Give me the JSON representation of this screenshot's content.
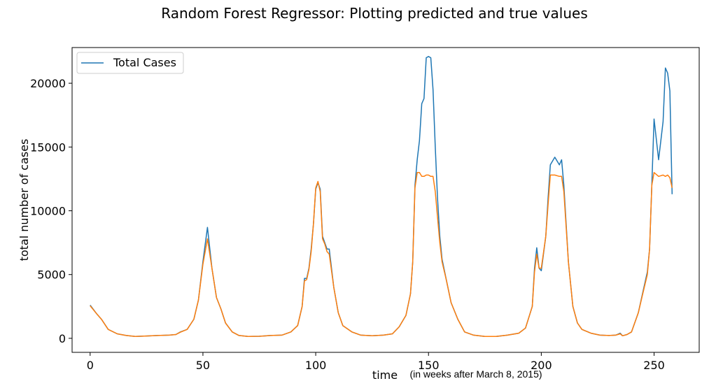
{
  "chart_data": {
    "type": "line",
    "title": "Random Forest Regressor: Plotting predicted and true values",
    "xlabel": "time",
    "xlabel_note": "(in weeks after March 8, 2015)",
    "ylabel": "total number of cases",
    "xlim": [
      -8,
      270
    ],
    "ylim": [
      -1100,
      22800
    ],
    "x_ticks": [
      0,
      50,
      100,
      150,
      200,
      250
    ],
    "y_ticks": [
      0,
      5000,
      10000,
      15000,
      20000
    ],
    "legend": {
      "position": "top-left",
      "entries": [
        "Total Cases"
      ]
    },
    "grid": false,
    "series": [
      {
        "name": "Total Cases",
        "color": "#1f77b4",
        "points": [
          [
            0,
            2600
          ],
          [
            3,
            1900
          ],
          [
            5,
            1500
          ],
          [
            8,
            700
          ],
          [
            12,
            350
          ],
          [
            16,
            220
          ],
          [
            20,
            150
          ],
          [
            25,
            180
          ],
          [
            30,
            220
          ],
          [
            35,
            250
          ],
          [
            38,
            300
          ],
          [
            40,
            500
          ],
          [
            43,
            700
          ],
          [
            46,
            1500
          ],
          [
            48,
            3000
          ],
          [
            50,
            6000
          ],
          [
            52,
            8700
          ],
          [
            54,
            5500
          ],
          [
            56,
            3200
          ],
          [
            58,
            2300
          ],
          [
            60,
            1200
          ],
          [
            63,
            500
          ],
          [
            66,
            220
          ],
          [
            70,
            150
          ],
          [
            75,
            160
          ],
          [
            80,
            220
          ],
          [
            85,
            250
          ],
          [
            89,
            500
          ],
          [
            92,
            1000
          ],
          [
            94,
            2500
          ],
          [
            95,
            4700
          ],
          [
            96,
            4700
          ],
          [
            97,
            5500
          ],
          [
            98,
            7000
          ],
          [
            99,
            9000
          ],
          [
            100,
            11700
          ],
          [
            101,
            12200
          ],
          [
            102,
            11700
          ],
          [
            103,
            8000
          ],
          [
            104,
            7500
          ],
          [
            105,
            7000
          ],
          [
            106,
            7000
          ],
          [
            108,
            4000
          ],
          [
            110,
            2000
          ],
          [
            112,
            1000
          ],
          [
            116,
            500
          ],
          [
            120,
            250
          ],
          [
            125,
            200
          ],
          [
            130,
            250
          ],
          [
            134,
            350
          ],
          [
            137,
            900
          ],
          [
            140,
            1800
          ],
          [
            142,
            3500
          ],
          [
            143,
            6000
          ],
          [
            144,
            12000
          ],
          [
            145,
            14000
          ],
          [
            146,
            15500
          ],
          [
            147,
            18400
          ],
          [
            148,
            18800
          ],
          [
            149,
            22000
          ],
          [
            150,
            22100
          ],
          [
            151,
            22000
          ],
          [
            152,
            19500
          ],
          [
            153,
            15000
          ],
          [
            154,
            11000
          ],
          [
            155,
            8000
          ],
          [
            156,
            6200
          ],
          [
            158,
            4500
          ],
          [
            160,
            2800
          ],
          [
            163,
            1500
          ],
          [
            166,
            500
          ],
          [
            170,
            250
          ],
          [
            175,
            150
          ],
          [
            180,
            150
          ],
          [
            185,
            250
          ],
          [
            190,
            400
          ],
          [
            193,
            800
          ],
          [
            196,
            2500
          ],
          [
            197,
            5500
          ],
          [
            198,
            7100
          ],
          [
            199,
            5500
          ],
          [
            200,
            5300
          ],
          [
            202,
            8000
          ],
          [
            203,
            11000
          ],
          [
            204,
            13600
          ],
          [
            206,
            14200
          ],
          [
            208,
            13600
          ],
          [
            209,
            14000
          ],
          [
            210,
            12000
          ],
          [
            212,
            6000
          ],
          [
            214,
            2500
          ],
          [
            216,
            1200
          ],
          [
            218,
            700
          ],
          [
            222,
            400
          ],
          [
            226,
            250
          ],
          [
            230,
            220
          ],
          [
            233,
            250
          ],
          [
            235,
            400
          ],
          [
            236,
            200
          ],
          [
            238,
            300
          ],
          [
            240,
            500
          ],
          [
            243,
            2000
          ],
          [
            245,
            3600
          ],
          [
            247,
            5200
          ],
          [
            248,
            7000
          ],
          [
            249,
            12000
          ],
          [
            250,
            17200
          ],
          [
            252,
            14000
          ],
          [
            254,
            17000
          ],
          [
            255,
            21200
          ],
          [
            256,
            20800
          ],
          [
            257,
            19400
          ],
          [
            258,
            11300
          ]
        ]
      },
      {
        "name": "",
        "color": "#ff7f0e",
        "points": [
          [
            0,
            2550
          ],
          [
            3,
            1900
          ],
          [
            5,
            1500
          ],
          [
            8,
            700
          ],
          [
            12,
            350
          ],
          [
            16,
            220
          ],
          [
            20,
            150
          ],
          [
            25,
            180
          ],
          [
            30,
            220
          ],
          [
            35,
            250
          ],
          [
            38,
            300
          ],
          [
            40,
            480
          ],
          [
            43,
            700
          ],
          [
            46,
            1500
          ],
          [
            48,
            3000
          ],
          [
            50,
            5800
          ],
          [
            52,
            7800
          ],
          [
            54,
            5500
          ],
          [
            56,
            3200
          ],
          [
            58,
            2300
          ],
          [
            60,
            1200
          ],
          [
            63,
            500
          ],
          [
            66,
            220
          ],
          [
            70,
            150
          ],
          [
            75,
            160
          ],
          [
            80,
            220
          ],
          [
            85,
            250
          ],
          [
            89,
            500
          ],
          [
            92,
            1000
          ],
          [
            94,
            2500
          ],
          [
            95,
            4500
          ],
          [
            96,
            4600
          ],
          [
            97,
            5400
          ],
          [
            98,
            6800
          ],
          [
            99,
            9000
          ],
          [
            100,
            11800
          ],
          [
            101,
            12300
          ],
          [
            102,
            11500
          ],
          [
            103,
            7800
          ],
          [
            104,
            7400
          ],
          [
            105,
            6800
          ],
          [
            106,
            6600
          ],
          [
            108,
            4000
          ],
          [
            110,
            2000
          ],
          [
            112,
            1000
          ],
          [
            116,
            500
          ],
          [
            120,
            250
          ],
          [
            125,
            200
          ],
          [
            130,
            250
          ],
          [
            134,
            350
          ],
          [
            137,
            900
          ],
          [
            140,
            1800
          ],
          [
            142,
            3500
          ],
          [
            143,
            6000
          ],
          [
            144,
            11800
          ],
          [
            145,
            13000
          ],
          [
            146,
            13000
          ],
          [
            147,
            12700
          ],
          [
            148,
            12700
          ],
          [
            149,
            12800
          ],
          [
            150,
            12800
          ],
          [
            151,
            12700
          ],
          [
            152,
            12700
          ],
          [
            153,
            11500
          ],
          [
            154,
            9500
          ],
          [
            155,
            7500
          ],
          [
            156,
            6000
          ],
          [
            158,
            4500
          ],
          [
            160,
            2800
          ],
          [
            163,
            1500
          ],
          [
            166,
            500
          ],
          [
            170,
            250
          ],
          [
            175,
            150
          ],
          [
            180,
            150
          ],
          [
            185,
            250
          ],
          [
            190,
            400
          ],
          [
            193,
            800
          ],
          [
            196,
            2500
          ],
          [
            197,
            5200
          ],
          [
            198,
            6600
          ],
          [
            199,
            5500
          ],
          [
            200,
            5500
          ],
          [
            202,
            8000
          ],
          [
            203,
            10500
          ],
          [
            204,
            12800
          ],
          [
            206,
            12800
          ],
          [
            208,
            12700
          ],
          [
            209,
            12700
          ],
          [
            210,
            11500
          ],
          [
            212,
            6000
          ],
          [
            214,
            2500
          ],
          [
            216,
            1200
          ],
          [
            218,
            700
          ],
          [
            222,
            400
          ],
          [
            226,
            250
          ],
          [
            230,
            220
          ],
          [
            233,
            250
          ],
          [
            235,
            350
          ],
          [
            236,
            200
          ],
          [
            238,
            300
          ],
          [
            240,
            500
          ],
          [
            243,
            2000
          ],
          [
            245,
            3500
          ],
          [
            247,
            5000
          ],
          [
            248,
            7000
          ],
          [
            249,
            12000
          ],
          [
            250,
            13000
          ],
          [
            252,
            12700
          ],
          [
            254,
            12800
          ],
          [
            255,
            12700
          ],
          [
            256,
            12800
          ],
          [
            257,
            12600
          ],
          [
            258,
            11800
          ]
        ]
      }
    ]
  }
}
